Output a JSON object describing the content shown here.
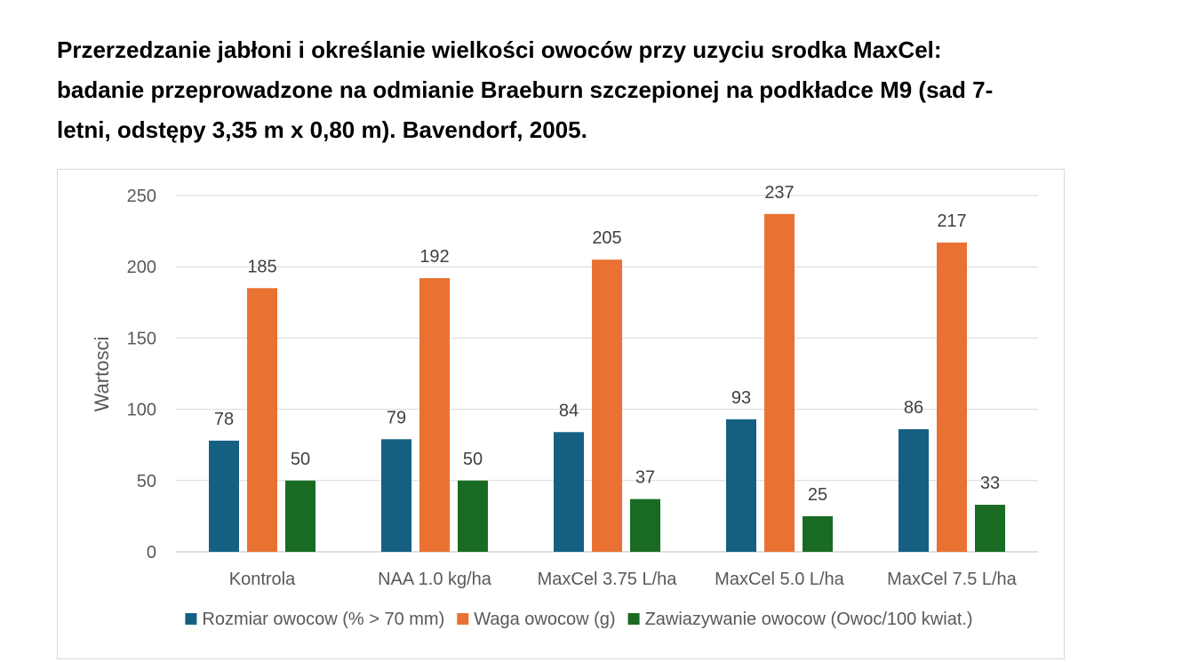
{
  "title_lines": [
    "Przerzedzanie jabłoni i określanie wielkości owoców przy uzyciu srodka MaxCel:",
    "badanie przeprowadzone na odmianie Braeburn szczepionej na podkładce M9 (sad 7-",
    "letni, odstępy 3,35 m x 0,80 m). Bavendorf, 2005."
  ],
  "chart_data": {
    "type": "bar",
    "title": "Przerzedzanie jabłoni i określanie wielkości owoców przy uzyciu srodka MaxCel: badanie przeprowadzone na odmianie Braeburn szczepionej na podkładce M9 (sad 7-letni, odstępy 3,35 m x 0,80 m). Bavendorf, 2005.",
    "xlabel": "",
    "ylabel": "Wartosci",
    "ylim": [
      0,
      250
    ],
    "yticks": [
      0,
      50,
      100,
      150,
      200,
      250
    ],
    "grid": true,
    "legend_position": "bottom",
    "categories": [
      "Kontrola",
      "NAA 1.0 kg/ha",
      "MaxCel 3.75 L/ha",
      "MaxCel 5.0 L/ha",
      "MaxCel 7.5 L/ha"
    ],
    "series": [
      {
        "name": "Rozmiar owocow (% > 70 mm)",
        "color": "#156082",
        "values": [
          78,
          79,
          84,
          93,
          86
        ]
      },
      {
        "name": "Waga owocow (g)",
        "color": "#E97132",
        "values": [
          185,
          192,
          205,
          237,
          217
        ]
      },
      {
        "name": "Zawiazywanie owocow (Owoc/100 kwiat.)",
        "color": "#196B24",
        "values": [
          50,
          50,
          37,
          25,
          33
        ]
      }
    ]
  }
}
